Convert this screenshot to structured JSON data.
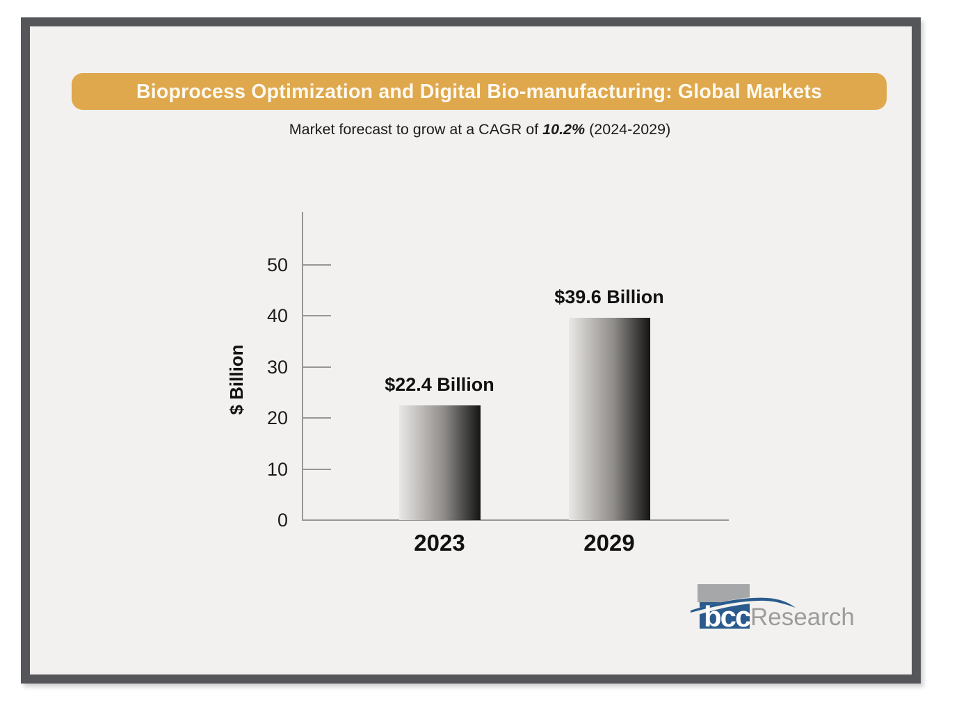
{
  "banner": {
    "title": "Bioprocess Optimization and Digital Bio-manufacturing: Global Markets",
    "background": "#dfa84d",
    "text_color": "#fdf9f0"
  },
  "subtitle": {
    "prefix": "Market forecast to grow at a CAGR of ",
    "cagr": "10.2%",
    "suffix": " (2024-2029)"
  },
  "chart": {
    "ylabel": "$ Billion"
  },
  "logo": {
    "bcc": "bcc",
    "research": "Research",
    "blue": "#2a5b8c",
    "gray_block": "#a6a7a9",
    "research_gray": "#9c9c9c"
  },
  "colors": {
    "frame_border": "#55565a",
    "canvas_bg": "#f2f1ef",
    "axis": "#969696",
    "bar_gradient_light": "#eae8e6",
    "bar_gradient_dark": "#141414",
    "label_text": "#111111"
  },
  "chart_data": {
    "type": "bar",
    "categories": [
      "2023",
      "2029"
    ],
    "values": [
      22.4,
      39.6
    ],
    "value_labels": [
      "$22.4 Billion",
      "$39.6 Billion"
    ],
    "title": "Bioprocess Optimization and Digital Bio-manufacturing: Global Markets",
    "subtitle": "Market forecast to grow at a CAGR of 10.2% (2024-2029)",
    "xlabel": "",
    "ylabel": "$ Billion",
    "yticks": [
      0,
      10,
      20,
      30,
      40,
      50
    ],
    "ylim": [
      0,
      60
    ],
    "grid": false,
    "legend": false,
    "source_logo": "bccResearch"
  }
}
